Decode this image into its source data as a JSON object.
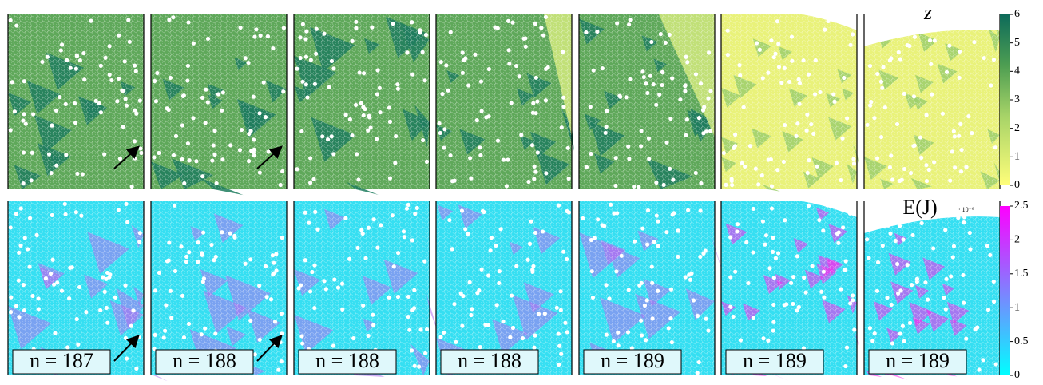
{
  "top_row": {
    "colorbar": {
      "label": "z",
      "ticks": [
        0,
        1,
        2,
        3,
        4,
        5,
        6
      ]
    }
  },
  "bottom_row": {
    "colorbar": {
      "label": "E(J)",
      "multiplier": "· 10⁻⁶",
      "ticks": [
        0,
        0.5,
        1,
        1.5,
        2,
        2.5
      ]
    },
    "panels": [
      {
        "label": "n = 187"
      },
      {
        "label": "n = 188"
      },
      {
        "label": "n = 188"
      },
      {
        "label": "n = 188"
      },
      {
        "label": "n = 189"
      },
      {
        "label": "n = 189"
      },
      {
        "label": "n = 189"
      }
    ]
  }
}
